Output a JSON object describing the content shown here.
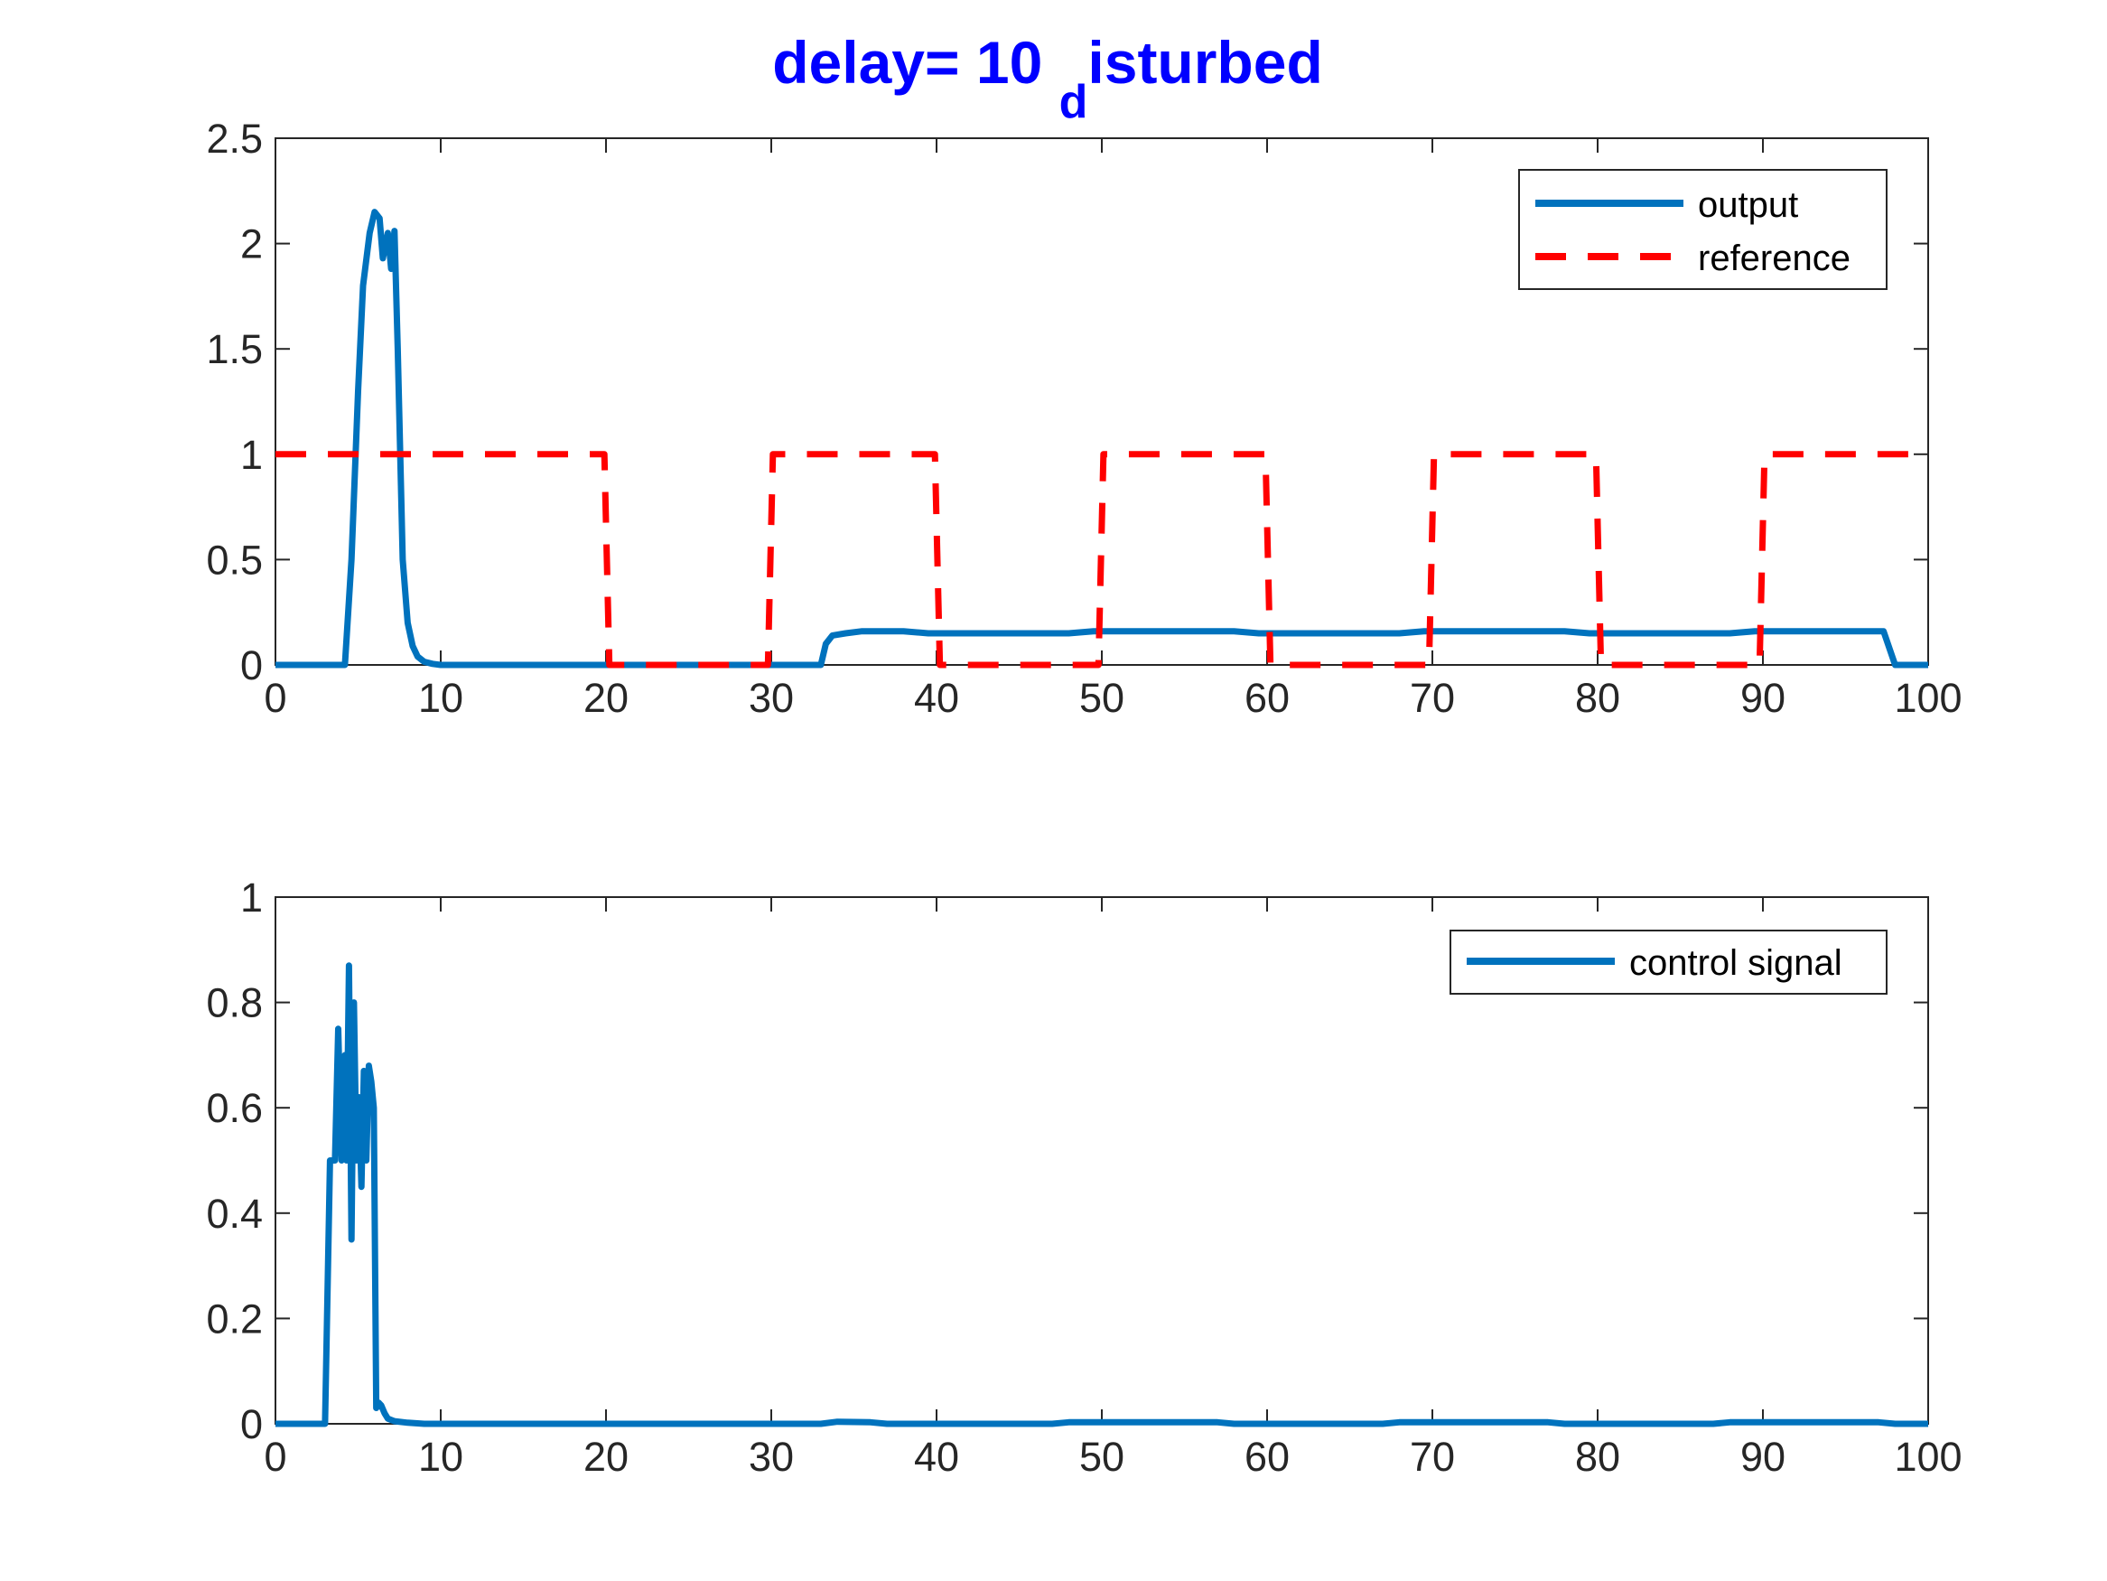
{
  "title": {
    "main": "delay= 10 ",
    "sub": "d",
    "rest": "isturbed",
    "color": "#0000FF"
  },
  "colors": {
    "output": "#0072BD",
    "reference": "#FF0000",
    "control": "#0072BD",
    "axis": "#262626"
  },
  "chart_data": [
    {
      "type": "line",
      "xlim": [
        0,
        100
      ],
      "ylim": [
        0,
        2.5
      ],
      "xticks": [
        "0",
        "10",
        "20",
        "30",
        "40",
        "50",
        "60",
        "70",
        "80",
        "90",
        "100"
      ],
      "yticks": [
        "0",
        "0.5",
        "1",
        "1.5",
        "2",
        "2.5"
      ],
      "grid": false,
      "legend_position": "top-right",
      "series": [
        {
          "name": "output",
          "style": "solid",
          "x": [
            0,
            4.2,
            4.6,
            5.0,
            5.3,
            5.7,
            6.0,
            6.3,
            6.5,
            6.8,
            7.0,
            7.2,
            7.4,
            7.7,
            8.0,
            8.3,
            8.6,
            9.0,
            9.5,
            10,
            12,
            20,
            25,
            33,
            33.3,
            33.7,
            34.5,
            35.5,
            38,
            39.5,
            40.5,
            48,
            49.5,
            50.5,
            58,
            59.5,
            60.5,
            68,
            69.5,
            70.5,
            78,
            79.5,
            80.5,
            88,
            89.5,
            90.5,
            96.8,
            97.3,
            98,
            100
          ],
          "y": [
            0,
            0,
            0.5,
            1.3,
            1.8,
            2.05,
            2.15,
            2.12,
            1.93,
            2.05,
            1.88,
            2.06,
            1.5,
            0.5,
            0.2,
            0.09,
            0.04,
            0.015,
            0.005,
            0,
            0,
            0,
            0,
            0,
            0.1,
            0.14,
            0.15,
            0.16,
            0.16,
            0.15,
            0.15,
            0.15,
            0.16,
            0.16,
            0.16,
            0.15,
            0.15,
            0.15,
            0.16,
            0.16,
            0.16,
            0.15,
            0.15,
            0.15,
            0.16,
            0.16,
            0.16,
            0.16,
            0,
            0
          ]
        },
        {
          "name": "reference",
          "style": "dashed",
          "x": [
            0,
            19.9,
            20.2,
            29.8,
            30.1,
            39.9,
            40.2,
            49.8,
            50.1,
            59.9,
            60.2,
            69.8,
            70.1,
            79.9,
            80.2,
            89.8,
            90.1,
            100
          ],
          "y": [
            1,
            1,
            0,
            0,
            1,
            1,
            0,
            0,
            1,
            1,
            0,
            0,
            1,
            1,
            0,
            0,
            1,
            1
          ]
        }
      ]
    },
    {
      "type": "line",
      "xlim": [
        0,
        100
      ],
      "ylim": [
        0,
        1
      ],
      "xticks": [
        "0",
        "10",
        "20",
        "30",
        "40",
        "50",
        "60",
        "70",
        "80",
        "90",
        "100"
      ],
      "yticks": [
        "0",
        "0.2",
        "0.4",
        "0.6",
        "0.8",
        "1"
      ],
      "grid": false,
      "legend_position": "top-right",
      "series": [
        {
          "name": "control signal",
          "style": "solid",
          "x": [
            0,
            3.0,
            3.3,
            3.6,
            3.8,
            4.0,
            4.2,
            4.3,
            4.45,
            4.6,
            4.75,
            4.9,
            5.05,
            5.2,
            5.35,
            5.5,
            5.65,
            5.8,
            5.95,
            6.1,
            6.25,
            6.4,
            6.6,
            6.8,
            7.2,
            8,
            9,
            10,
            20,
            33,
            34,
            36,
            37,
            40,
            47,
            48,
            50,
            57,
            58,
            60,
            67,
            68,
            70,
            77,
            78,
            80,
            87,
            88,
            90,
            97,
            98,
            100
          ],
          "y": [
            0,
            0,
            0.5,
            0.5,
            0.75,
            0.5,
            0.7,
            0.5,
            0.87,
            0.35,
            0.8,
            0.5,
            0.62,
            0.45,
            0.67,
            0.5,
            0.68,
            0.65,
            0.6,
            0.03,
            0.04,
            0.035,
            0.02,
            0.01,
            0.005,
            0.002,
            0,
            0,
            0,
            0,
            0.004,
            0.003,
            0,
            0,
            0,
            0.003,
            0.003,
            0.003,
            0,
            0,
            0,
            0.003,
            0.003,
            0.003,
            0,
            0,
            0,
            0.003,
            0.003,
            0.003,
            0,
            0
          ]
        }
      ]
    }
  ]
}
